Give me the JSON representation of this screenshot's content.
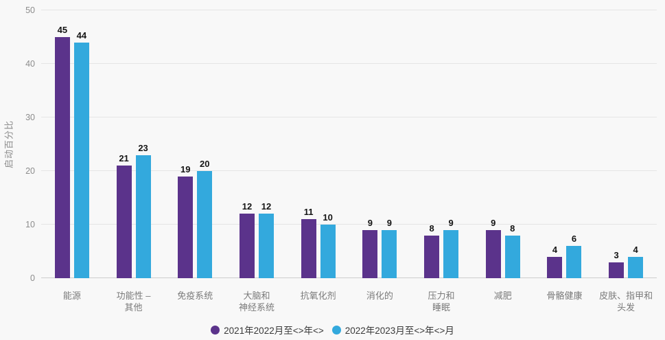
{
  "chart_data": {
    "type": "bar",
    "title": "",
    "xlabel": "",
    "ylabel": "启动百分比",
    "ylim": [
      0,
      50
    ],
    "yticks": [
      0,
      10,
      20,
      30,
      40,
      50
    ],
    "grid": true,
    "legend_position": "bottom",
    "categories": [
      "能源",
      "功能性 –\n其他",
      "免疫系统",
      "大脑和\n神经系统",
      "抗氧化剂",
      "消化的",
      "压力和\n睡眠",
      "减肥",
      "骨骼健康",
      "皮肤、指甲和\n头发"
    ],
    "series": [
      {
        "name": "2021年2022月至<>年<>",
        "color": "#5B338B",
        "values": [
          45,
          21,
          19,
          12,
          11,
          9,
          8,
          9,
          4,
          3
        ]
      },
      {
        "name": "2022年2023月至<>年<>月",
        "color": "#33A9DD",
        "values": [
          44,
          23,
          20,
          12,
          10,
          9,
          9,
          8,
          6,
          4
        ]
      }
    ]
  },
  "colors": {
    "background": "#F8F8F8",
    "gridline": "#E5E5E5",
    "axis_line": "#CCCCCC",
    "tick_label": "#8C8C8C",
    "category_label": "#7A7A7A",
    "value_label": "#141414",
    "legend_text": "#3A3A3A"
  }
}
